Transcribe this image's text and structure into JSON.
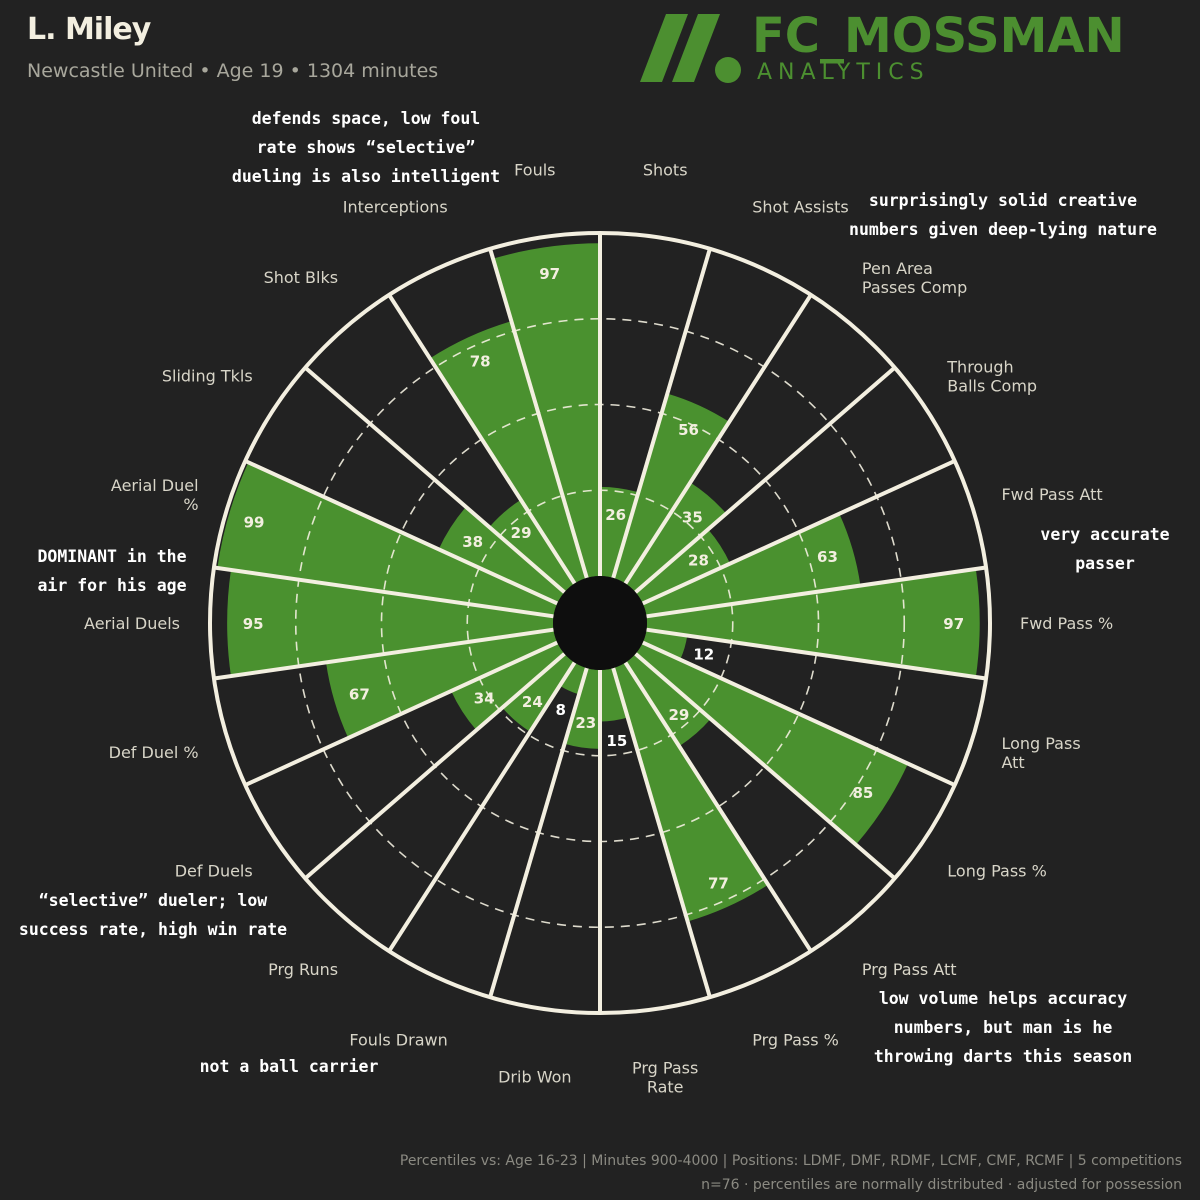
{
  "header": {
    "player_name": "L. Miley",
    "subtitle": "Newcastle United • Age 19 • 1304 minutes"
  },
  "brand": {
    "name": "FC_MOSSMAN",
    "sub": "ANALYTICS",
    "logo_icon": "stripes-and-dot-logo"
  },
  "colors": {
    "background": "#222222",
    "bar_fill": "#4a912f",
    "lines": "#f3efe0",
    "brand": "#4c8f30",
    "muted_text": "#a8a79c"
  },
  "chart_data": {
    "type": "polar_bar",
    "scale": [
      0,
      100
    ],
    "grid": "dashed rings at 25, 50, 75",
    "categories": [
      "Shots",
      "Shot Assists",
      "Pen Area\nPasses Comp",
      "Through\nBalls Comp",
      "Fwd Pass Att",
      "Fwd Pass %",
      "Long Pass\nAtt",
      "Long Pass %",
      "Prg Pass Att",
      "Prg Pass %",
      "Prg Pass\nRate",
      "Drib Won",
      "Fouls Drawn",
      "Prg Runs",
      "Def Duels",
      "Def Duel %",
      "Aerial Duels",
      "Aerial Duel\n%",
      "Sliding Tkls",
      "Shot Blks",
      "Interceptions",
      "Fouls"
    ],
    "values": [
      26,
      56,
      35,
      28,
      63,
      97,
      12,
      85,
      29,
      77,
      15,
      23,
      8,
      24,
      34,
      67,
      95,
      99,
      38,
      29,
      78,
      97
    ]
  },
  "annotations": [
    "defends space, low foul\nrate shows “selective”\ndueling is also intelligent",
    "surprisingly solid creative\nnumbers given deep-lying nature",
    "DOMINANT in the\nair for his age",
    "very accurate\npasser",
    "“selective” dueler; low\nsuccess rate, high win rate",
    "low volume helps accuracy\nnumbers, but man is he\nthrowing darts this season",
    "not a ball carrier"
  ],
  "footer": {
    "line1": "Percentiles vs: Age 16-23 | Minutes 900-4000 | Positions: LDMF, DMF, RDMF, LCMF, CMF, RCMF | 5 competitions",
    "line2": "n=76 · percentiles are normally distributed · adjusted for possession"
  }
}
